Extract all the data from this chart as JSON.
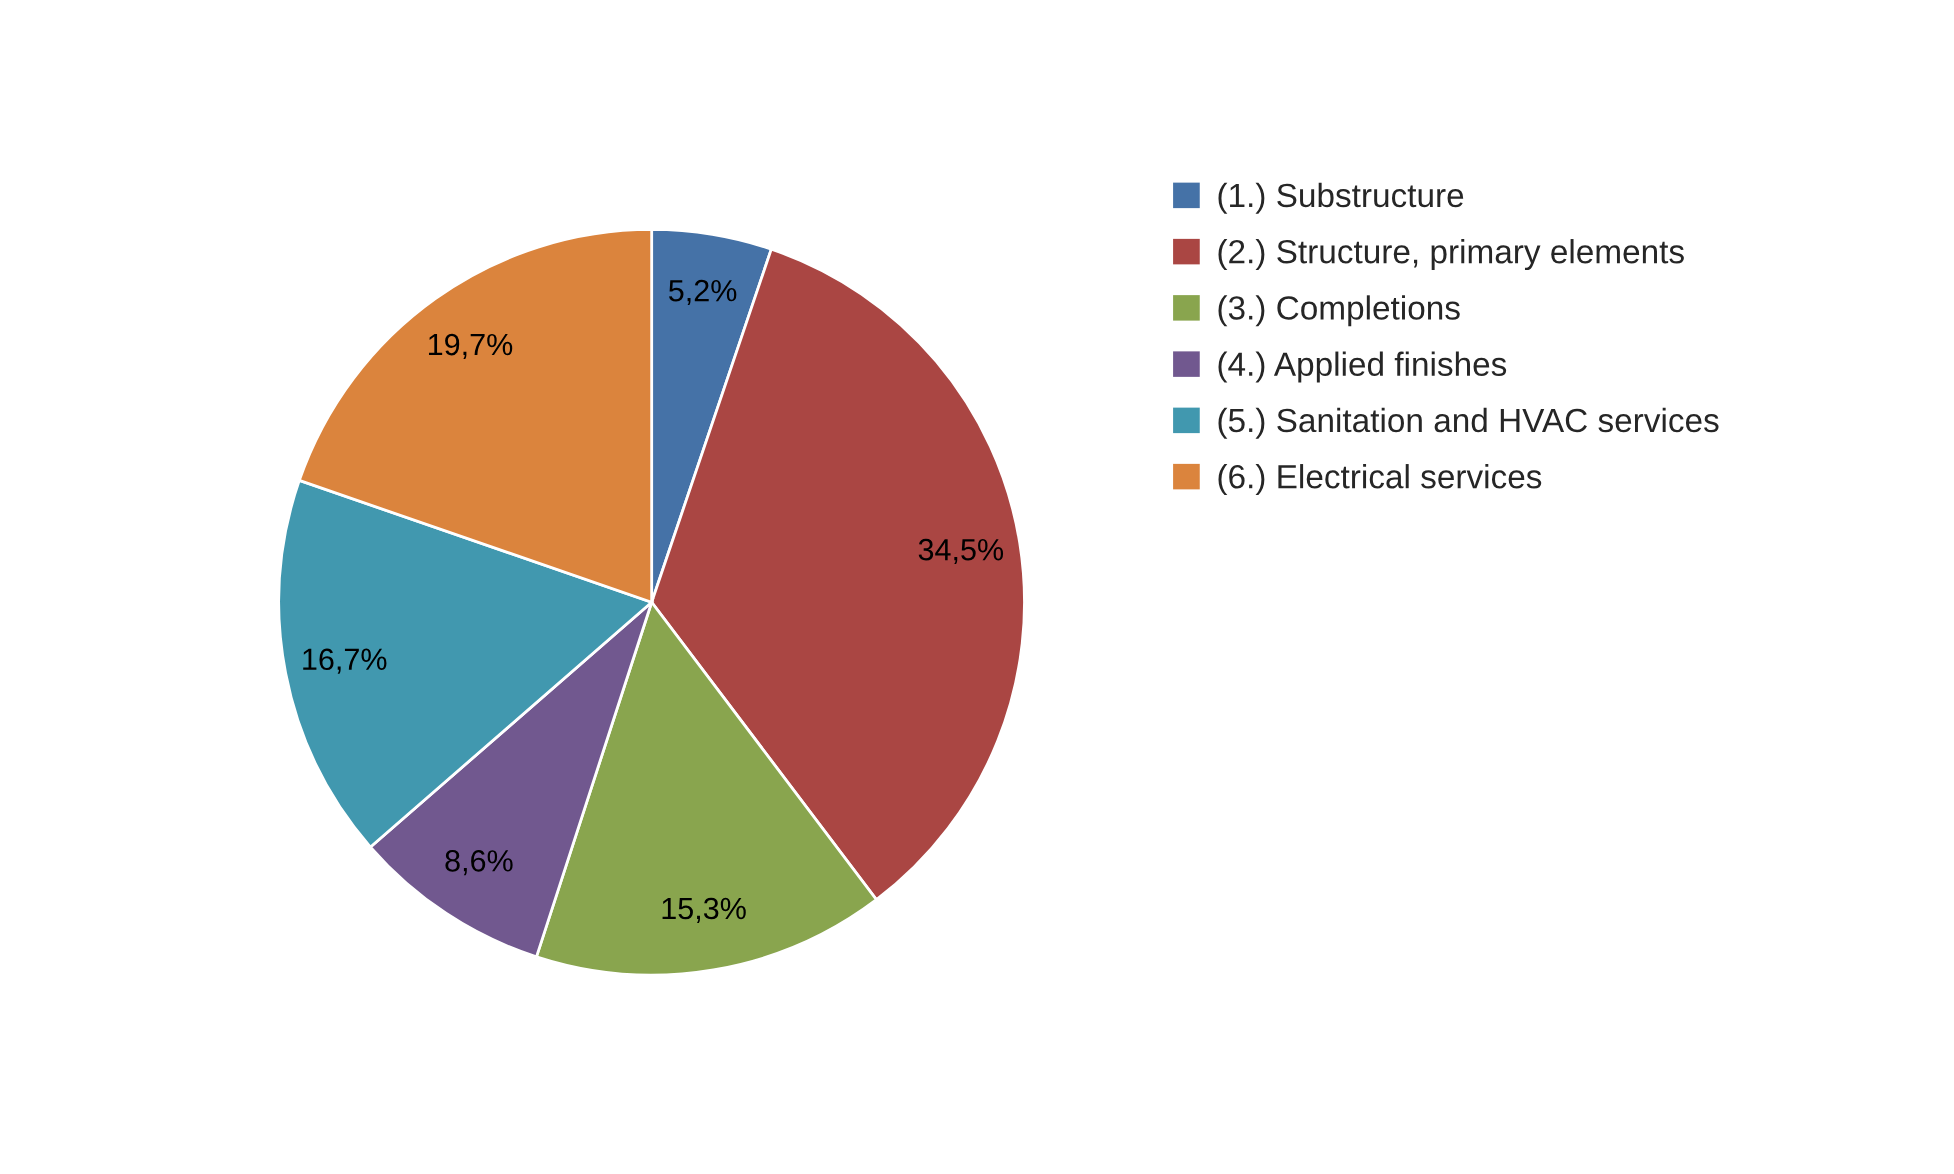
{
  "chart_data": {
    "type": "pie",
    "categories": [
      "(1.) Substructure",
      "(2.) Structure, primary elements",
      "(3.) Completions",
      "(4.) Applied finishes",
      "(5.) Sanitation and HVAC services",
      "(6.) Electrical services"
    ],
    "values": [
      5.2,
      34.5,
      15.3,
      8.6,
      16.7,
      19.7
    ],
    "value_labels": [
      "5,2%",
      "34,5%",
      "15,3%",
      "8,6%",
      "16,7%",
      "19,7%"
    ],
    "colors": [
      "#4572a7",
      "#aa4643",
      "#89a54e",
      "#71588f",
      "#4198af",
      "#db843d"
    ],
    "legend": "right"
  }
}
